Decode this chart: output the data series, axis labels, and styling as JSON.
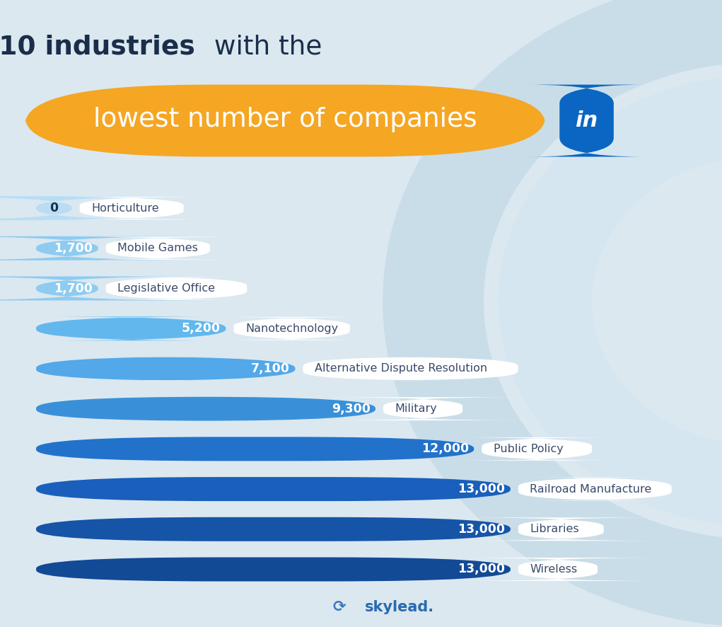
{
  "categories": [
    "Horticulture",
    "Mobile Games",
    "Legislative Office",
    "Nanotechnology",
    "Alternative Dispute Resolution",
    "Military",
    "Public Policy",
    "Railroad Manufacture",
    "Libraries",
    "Wireless"
  ],
  "values": [
    0,
    1700,
    1700,
    5200,
    7100,
    9300,
    12000,
    13000,
    13000,
    13000
  ],
  "bar_colors": [
    "#b8ddf5",
    "#8ecbf0",
    "#8ecbf0",
    "#62b8ed",
    "#52a8e8",
    "#3a90d8",
    "#2272cc",
    "#1a5fbb",
    "#1654a8",
    "#124a96"
  ],
  "max_value": 13000,
  "bg_color": "#dbe8f0",
  "orange_highlight": "#f5a623",
  "linkedin_blue": "#0a66c2",
  "title_dark": "#1a2e4a",
  "category_label_color": "#3a4a6a",
  "arc_color1": "#c8dce8",
  "arc_color2": "#d4e6f0"
}
